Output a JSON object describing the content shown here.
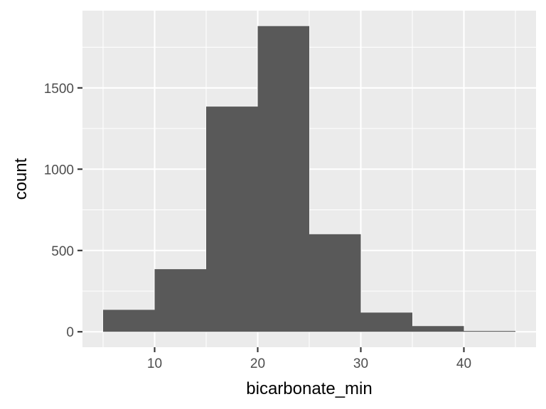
{
  "chart_data": {
    "type": "bar",
    "title": "",
    "xlabel": "bicarbonate_min",
    "ylabel": "count",
    "bins": [
      {
        "x0": 5,
        "x1": 10,
        "count": 135
      },
      {
        "x0": 10,
        "x1": 15,
        "count": 385
      },
      {
        "x0": 15,
        "x1": 20,
        "count": 1385
      },
      {
        "x0": 20,
        "x1": 25,
        "count": 1880
      },
      {
        "x0": 25,
        "x1": 30,
        "count": 600
      },
      {
        "x0": 30,
        "x1": 35,
        "count": 118
      },
      {
        "x0": 35,
        "x1": 40,
        "count": 35
      },
      {
        "x0": 40,
        "x1": 45,
        "count": 5
      }
    ],
    "xlim": [
      3,
      47
    ],
    "ylim": [
      -95,
      1975
    ],
    "x_ticks": [
      10,
      20,
      30,
      40
    ],
    "y_ticks": [
      0,
      500,
      1000,
      1500
    ],
    "x_tick_labels": [
      "10",
      "20",
      "30",
      "40"
    ],
    "y_tick_labels": [
      "0",
      "500",
      "1000",
      "1500"
    ],
    "grid": true,
    "legend": "none",
    "colors": {
      "panel": "#EBEBEB",
      "bar": "#595959",
      "grid": "#FFFFFF",
      "tick_text": "#4D4D4D",
      "axis_title": "#000000"
    }
  }
}
